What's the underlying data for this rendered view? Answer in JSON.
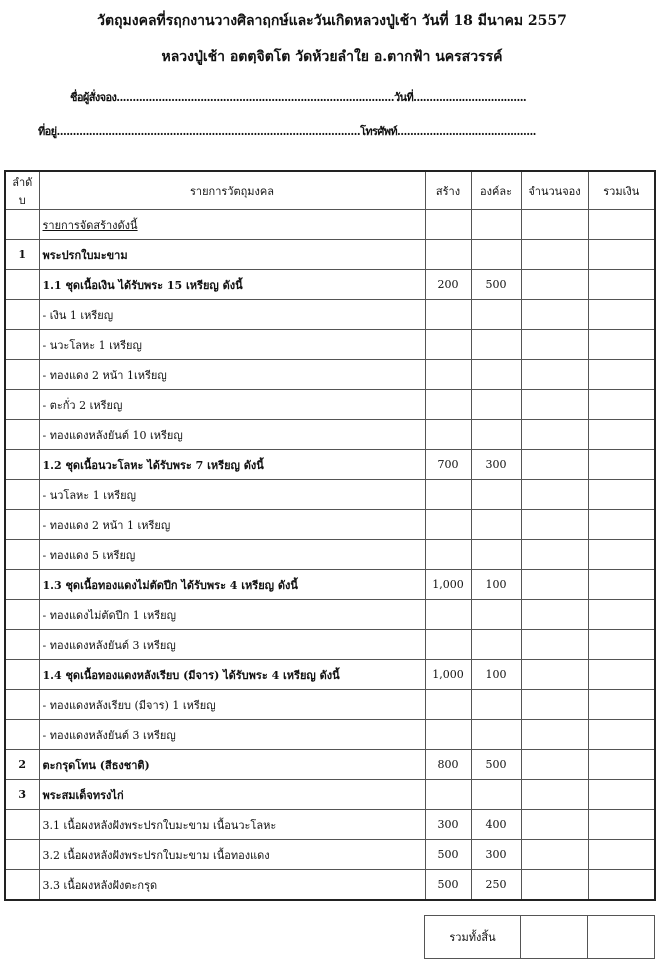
{
  "header": {
    "title": "วัตถุมงคลที่รฤกงานวางศิลาฤกษ์และวันเกิดหลวงปู่เช้า วันที่ 18 มีนาคม 2557",
    "subtitle": "หลวงปู่เช้า อตตฺจิตโต วัดห้วยลำใย อ.ตากฟ้า นครสวรรค์",
    "name_line": "ชื่อผู้สั่งจอง......................................................................................วันที่...................................",
    "address_line": "ที่อยู่..............................................................................................โทรศัพท์..........................................."
  },
  "table": {
    "columns": [
      "ลำดับ",
      "รายการวัตถุมงคล",
      "สร้าง",
      "องค์ละ",
      "จำนวนจอง",
      "รวมเงิน"
    ],
    "rows": [
      {
        "no": "",
        "item": "รายการจัดสร้างดังนี้",
        "made": "",
        "price": "",
        "style": "u"
      },
      {
        "no": "1",
        "item": "พระปรกใบมะขาม",
        "made": "",
        "price": "",
        "style": "b"
      },
      {
        "no": "",
        "item": "1.1 ชุดเนื้อเงิน ได้รับพระ 15 เหรียญ ดังนี้",
        "made": "200",
        "price": "500",
        "style": "b"
      },
      {
        "no": "",
        "item": "- เงิน 1 เหรียญ",
        "made": "",
        "price": "",
        "style": ""
      },
      {
        "no": "",
        "item": "- นวะโลหะ 1 เหรียญ",
        "made": "",
        "price": "",
        "style": ""
      },
      {
        "no": "",
        "item": "- ทองแดง 2 หน้า 1เหรียญ",
        "made": "",
        "price": "",
        "style": ""
      },
      {
        "no": "",
        "item": "- ตะกั่ว 2 เหรียญ",
        "made": "",
        "price": "",
        "style": ""
      },
      {
        "no": "",
        "item": "- ทองแดงหลังยันต์ 10 เหรียญ",
        "made": "",
        "price": "",
        "style": ""
      },
      {
        "no": "",
        "item": "1.2 ชุดเนื้อนวะโลหะ ได้รับพระ 7 เหรียญ ดังนี้",
        "made": "700",
        "price": "300",
        "style": "b"
      },
      {
        "no": "",
        "item": "- นวโลหะ 1 เหรียญ",
        "made": "",
        "price": "",
        "style": ""
      },
      {
        "no": "",
        "item": " - ทองแดง 2 หน้า 1 เหรียญ",
        "made": "",
        "price": "",
        "style": ""
      },
      {
        "no": "",
        "item": "- ทองแดง 5 เหรียญ",
        "made": "",
        "price": "",
        "style": ""
      },
      {
        "no": "",
        "item": " 1.3 ชุดเนื้อทองแดงไม่ตัดปีก ได้รับพระ 4 เหรียญ ดังนี้",
        "made": "1,000",
        "price": "100",
        "style": "b"
      },
      {
        "no": "",
        "item": "- ทองแดงไม่ตัดปีก 1 เหรียญ",
        "made": "",
        "price": "",
        "style": ""
      },
      {
        "no": "",
        "item": "- ทองแดงหลังยันต์ 3 เหรียญ",
        "made": "",
        "price": "",
        "style": ""
      },
      {
        "no": "",
        "item": "1.4 ชุดเนื้อทองแดงหลังเรียบ (มีจาร) ได้รับพระ 4 เหรียญ ดังนี้",
        "made": "1,000",
        "price": "100",
        "style": "b"
      },
      {
        "no": "",
        "item": " - ทองแดงหลังเรียบ (มีจาร) 1 เหรียญ",
        "made": "",
        "price": "",
        "style": ""
      },
      {
        "no": "",
        "item": " - ทองแดงหลังยันต์ 3 เหรียญ",
        "made": "",
        "price": "",
        "style": ""
      },
      {
        "no": "2",
        "item": "ตะกรุดโทน (สีธงชาติ)",
        "made": "800",
        "price": "500",
        "style": "b"
      },
      {
        "no": "3",
        "item": " พระสมเด็จทรงไก่",
        "made": "",
        "price": "",
        "style": "b"
      },
      {
        "no": "",
        "item": "3.1 เนื้อผงหลังฝังพระปรกใบมะขาม เนื้อนวะโลหะ",
        "made": "300",
        "price": "400",
        "style": ""
      },
      {
        "no": "",
        "item": "3.2 เนื้อผงหลังฝังพระปรกใบมะขาม เนื้อทองแดง",
        "made": "500",
        "price": "300",
        "style": ""
      },
      {
        "no": "",
        "item": "3.3 เนื้อผงหลังฝังตะกรุด",
        "made": "500",
        "price": "250",
        "style": ""
      }
    ],
    "total_label": "รวมทั้งสิ้น"
  }
}
